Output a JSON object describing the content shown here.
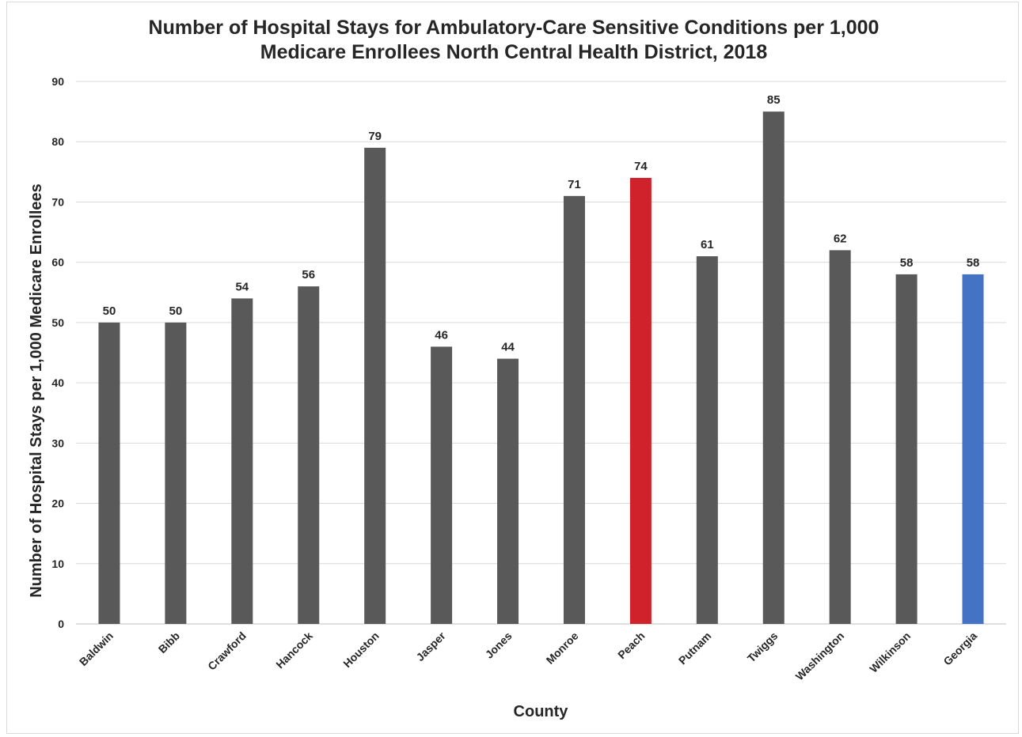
{
  "chart_data": {
    "type": "bar",
    "title_lines": [
      "Number of Hospital Stays for Ambulatory-Care Sensitive Conditions per 1,000",
      "Medicare Enrollees North Central Health District, 2018"
    ],
    "xlabel": "County",
    "ylabel": "Number of Hospital Stays per 1,000 Medicare Enrollees",
    "ylim": [
      0,
      90
    ],
    "yticks": [
      0,
      10,
      20,
      30,
      40,
      50,
      60,
      70,
      80,
      90
    ],
    "grid": true,
    "legend": "none",
    "categories": [
      "Baldwin",
      "Bibb",
      "Crawford",
      "Hancock",
      "Houston",
      "Jasper",
      "Jones",
      "Monroe",
      "Peach",
      "Putnam",
      "Twiggs",
      "Washington",
      "Wilkinson",
      "Georgia"
    ],
    "values": [
      50,
      50,
      54,
      56,
      79,
      46,
      44,
      71,
      74,
      61,
      85,
      62,
      58,
      58
    ],
    "colors": {
      "default": "#595959",
      "Peach": "#d0222b",
      "Georgia": "#4472c4"
    }
  }
}
